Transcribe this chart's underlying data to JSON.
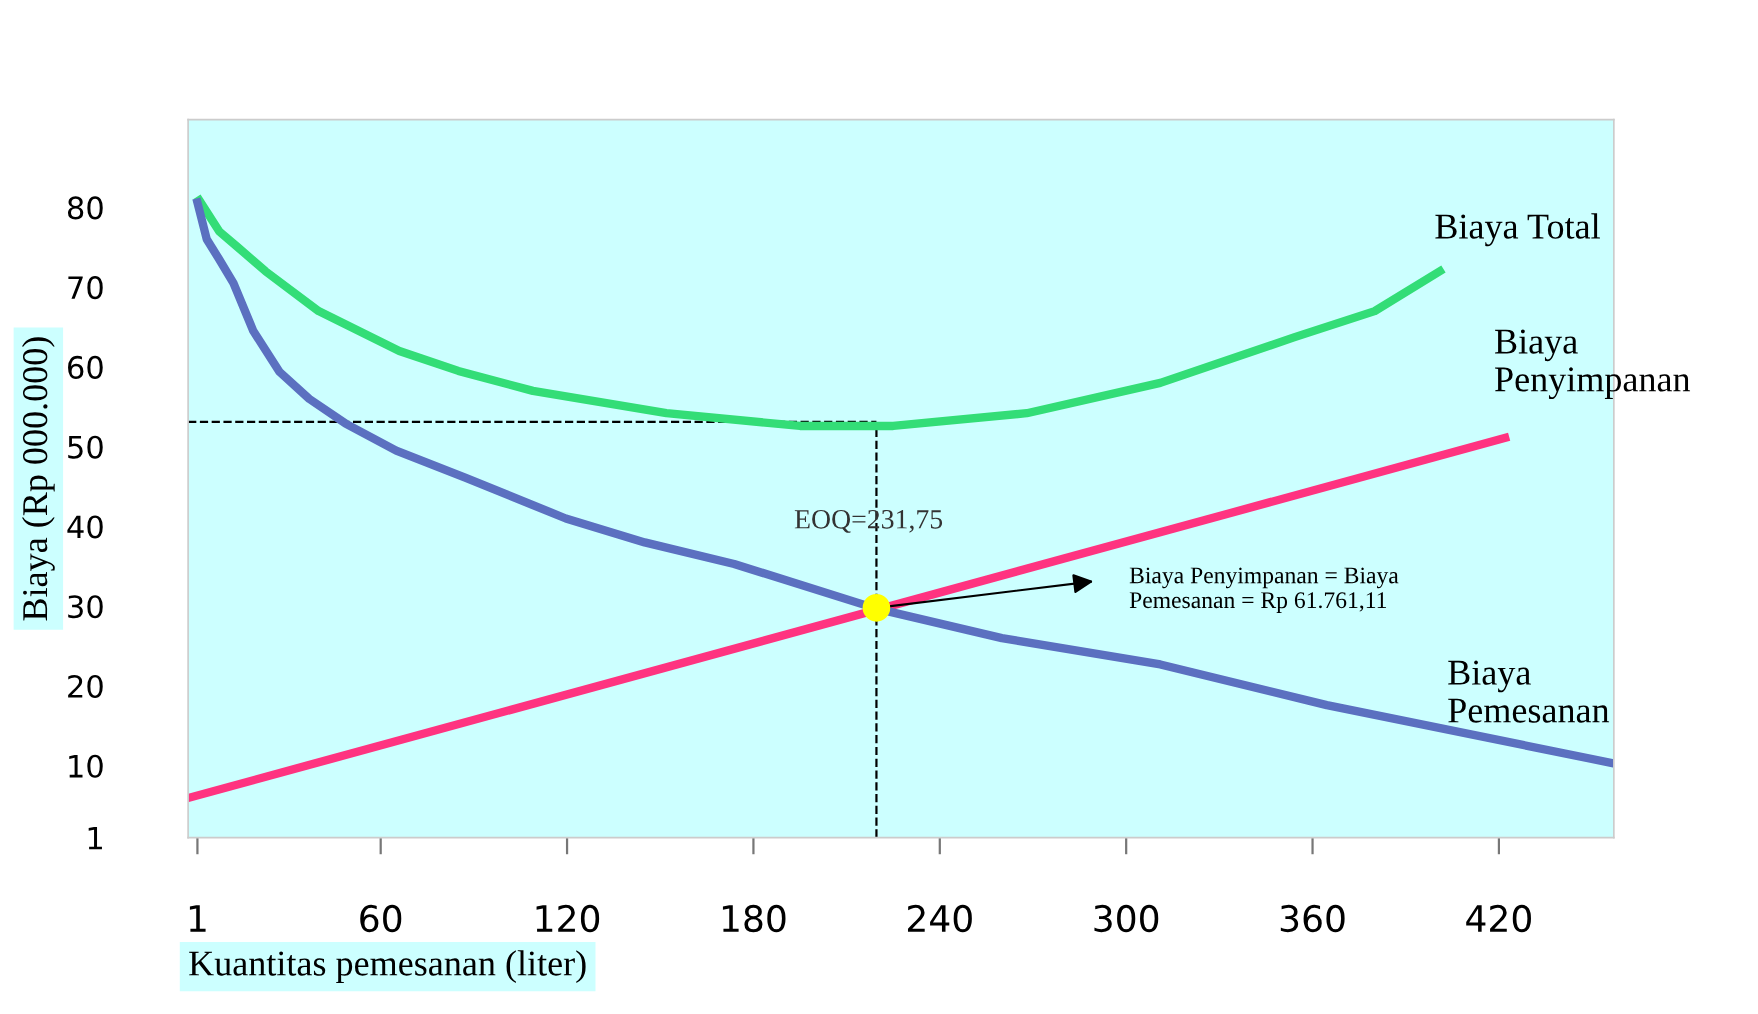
{
  "chart_data": {
    "type": "line",
    "xlabel": "Kuantitas pemesanan (liter)",
    "ylabel": "Biaya (Rp 000.000)",
    "xlim": [
      -2,
      457
    ],
    "ylim": [
      1,
      91
    ],
    "xticks": [
      1,
      60,
      120,
      180,
      240,
      300,
      360,
      420
    ],
    "yticks": [
      1,
      10,
      20,
      30,
      40,
      50,
      60,
      70,
      80
    ],
    "grid": false,
    "legend": false,
    "marker": "none",
    "line_style": "solid",
    "series": [
      {
        "name": "Biaya Total",
        "color": "#33dd77",
        "x": [
          1.6,
          8,
          14,
          22.9,
          40,
          66,
          85,
          109,
          152,
          195,
          225,
          268,
          311,
          354,
          380,
          401
        ],
        "values": [
          80.9,
          77,
          75,
          72,
          67,
          62,
          59.5,
          57,
          54.2,
          52.6,
          52.6,
          54.2,
          58,
          63.7,
          67,
          72
        ]
      },
      {
        "name": "Biaya\nPenyimpanan",
        "color": "#ff3380",
        "x": [
          -1.6,
          422
        ],
        "values": [
          6.0,
          51.1
        ]
      },
      {
        "name": "Biaya\nPemesanan",
        "color": "#5b70c0",
        "x": [
          1,
          4,
          8,
          12.6,
          19,
          27.4,
          37,
          48.7,
          65,
          87.4,
          119.6,
          145,
          173.8,
          219.6,
          260,
          311,
          364.6,
          457
        ],
        "values": [
          80.6,
          76,
          73.5,
          70.5,
          64.5,
          59.4,
          56,
          52.9,
          49.5,
          46.1,
          41,
          38,
          35.3,
          29.7,
          26,
          22.7,
          17.6,
          10.3
        ]
      },
      {
        "type": "scatter",
        "color": "#ffff00",
        "marker": "circle",
        "x": [
          219.6
        ],
        "values": [
          29.8
        ]
      }
    ],
    "ref_lines": [
      {
        "axis": "x",
        "value": 219.6,
        "color": "#000000",
        "line_style": "dashed"
      },
      {
        "axis": "y",
        "value": 53.1,
        "color": "#000000",
        "line_style": "dashed"
      }
    ],
    "annotations": [
      "EOQ=231,75",
      "Biaya Penyimpanan = Biaya\nPemesanan = Rp 61.761,11"
    ]
  }
}
